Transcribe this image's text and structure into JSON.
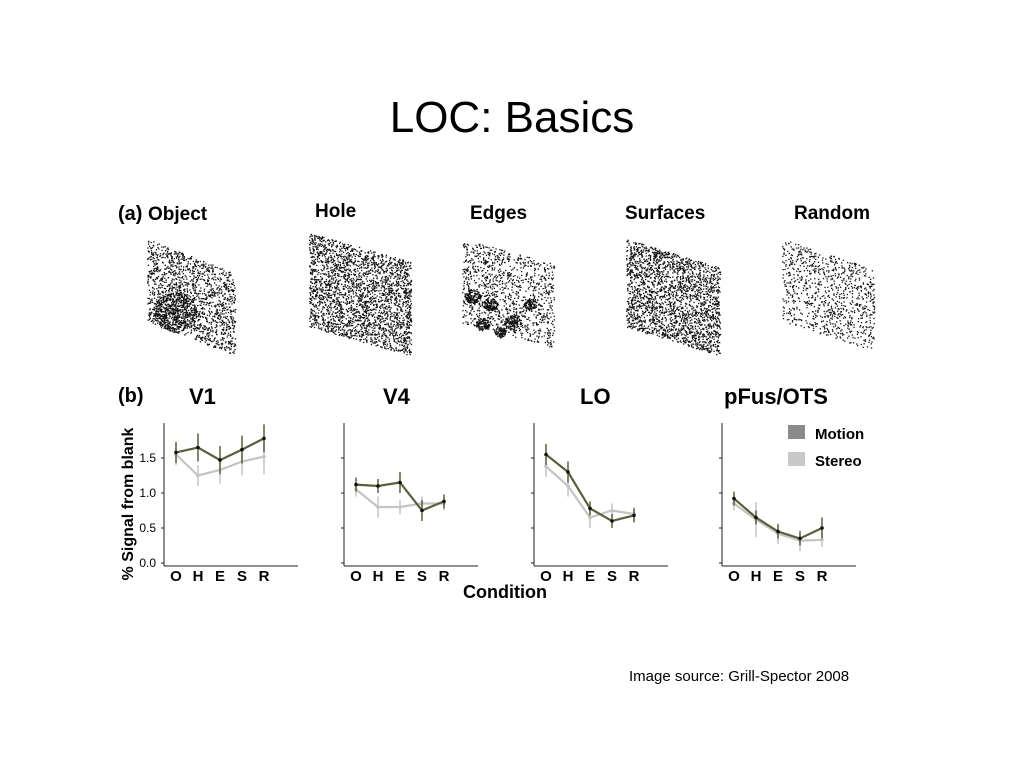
{
  "slide": {
    "title": "LOC: Basics",
    "credit": "Image source: Grill-Spector 2008"
  },
  "panel_a": {
    "letter": "(a)",
    "stimuli": [
      {
        "label": "Object"
      },
      {
        "label": "Hole"
      },
      {
        "label": "Edges"
      },
      {
        "label": "Surfaces"
      },
      {
        "label": "Random"
      }
    ]
  },
  "panel_b": {
    "letter": "(b)",
    "regions": [
      "V1",
      "V4",
      "LO",
      "pFus/OTS"
    ],
    "ylabel": "% Signal from blank",
    "xlabel": "Condition",
    "legend": [
      "Motion",
      "Stereo"
    ]
  },
  "colors": {
    "motion": "#5a5f3c",
    "stereo": "#c4c4c4",
    "legend_motion": "#8a8a8a",
    "legend_stereo": "#c8c8c8",
    "axis": "#222222",
    "dots": "#111111"
  },
  "chart_data": {
    "type": "line",
    "categories": [
      "O",
      "H",
      "E",
      "S",
      "R"
    ],
    "ylim": [
      0,
      2.0
    ],
    "yticks": [
      "0.0",
      "0.5",
      "1.0",
      "1.5"
    ],
    "ylabel": "% Signal from blank",
    "xlabel": "Condition",
    "panels": [
      {
        "title": "V1",
        "series": [
          {
            "name": "Motion",
            "values": [
              1.58,
              1.65,
              1.47,
              1.62,
              1.78
            ],
            "err": [
              0.15,
              0.2,
              0.2,
              0.2,
              0.2
            ]
          },
          {
            "name": "Stereo",
            "values": [
              1.55,
              1.25,
              1.33,
              1.45,
              1.52
            ],
            "err": [
              0.15,
              0.15,
              0.2,
              0.2,
              0.25
            ]
          }
        ]
      },
      {
        "title": "V4",
        "series": [
          {
            "name": "Motion",
            "values": [
              1.12,
              1.1,
              1.15,
              0.75,
              0.88
            ],
            "err": [
              0.1,
              0.1,
              0.15,
              0.15,
              0.1
            ]
          },
          {
            "name": "Stereo",
            "values": [
              1.05,
              0.8,
              0.8,
              0.85,
              0.85
            ],
            "err": [
              0.1,
              0.15,
              0.1,
              0.1,
              0.1
            ]
          }
        ]
      },
      {
        "title": "LO",
        "series": [
          {
            "name": "Motion",
            "values": [
              1.55,
              1.3,
              0.78,
              0.6,
              0.68
            ],
            "err": [
              0.15,
              0.15,
              0.1,
              0.1,
              0.1
            ]
          },
          {
            "name": "Stereo",
            "values": [
              1.38,
              1.1,
              0.65,
              0.75,
              0.7
            ],
            "err": [
              0.15,
              0.15,
              0.15,
              0.1,
              0.1
            ]
          }
        ]
      },
      {
        "title": "pFus/OTS",
        "series": [
          {
            "name": "Motion",
            "values": [
              0.92,
              0.65,
              0.45,
              0.35,
              0.5
            ],
            "err": [
              0.1,
              0.1,
              0.1,
              0.1,
              0.15
            ]
          },
          {
            "name": "Stereo",
            "values": [
              0.85,
              0.62,
              0.42,
              0.32,
              0.33
            ],
            "err": [
              0.1,
              0.25,
              0.15,
              0.15,
              0.1
            ]
          }
        ]
      }
    ],
    "legend": {
      "entries": [
        "Motion",
        "Stereo"
      ],
      "placement": "top-right"
    },
    "grid": false
  }
}
